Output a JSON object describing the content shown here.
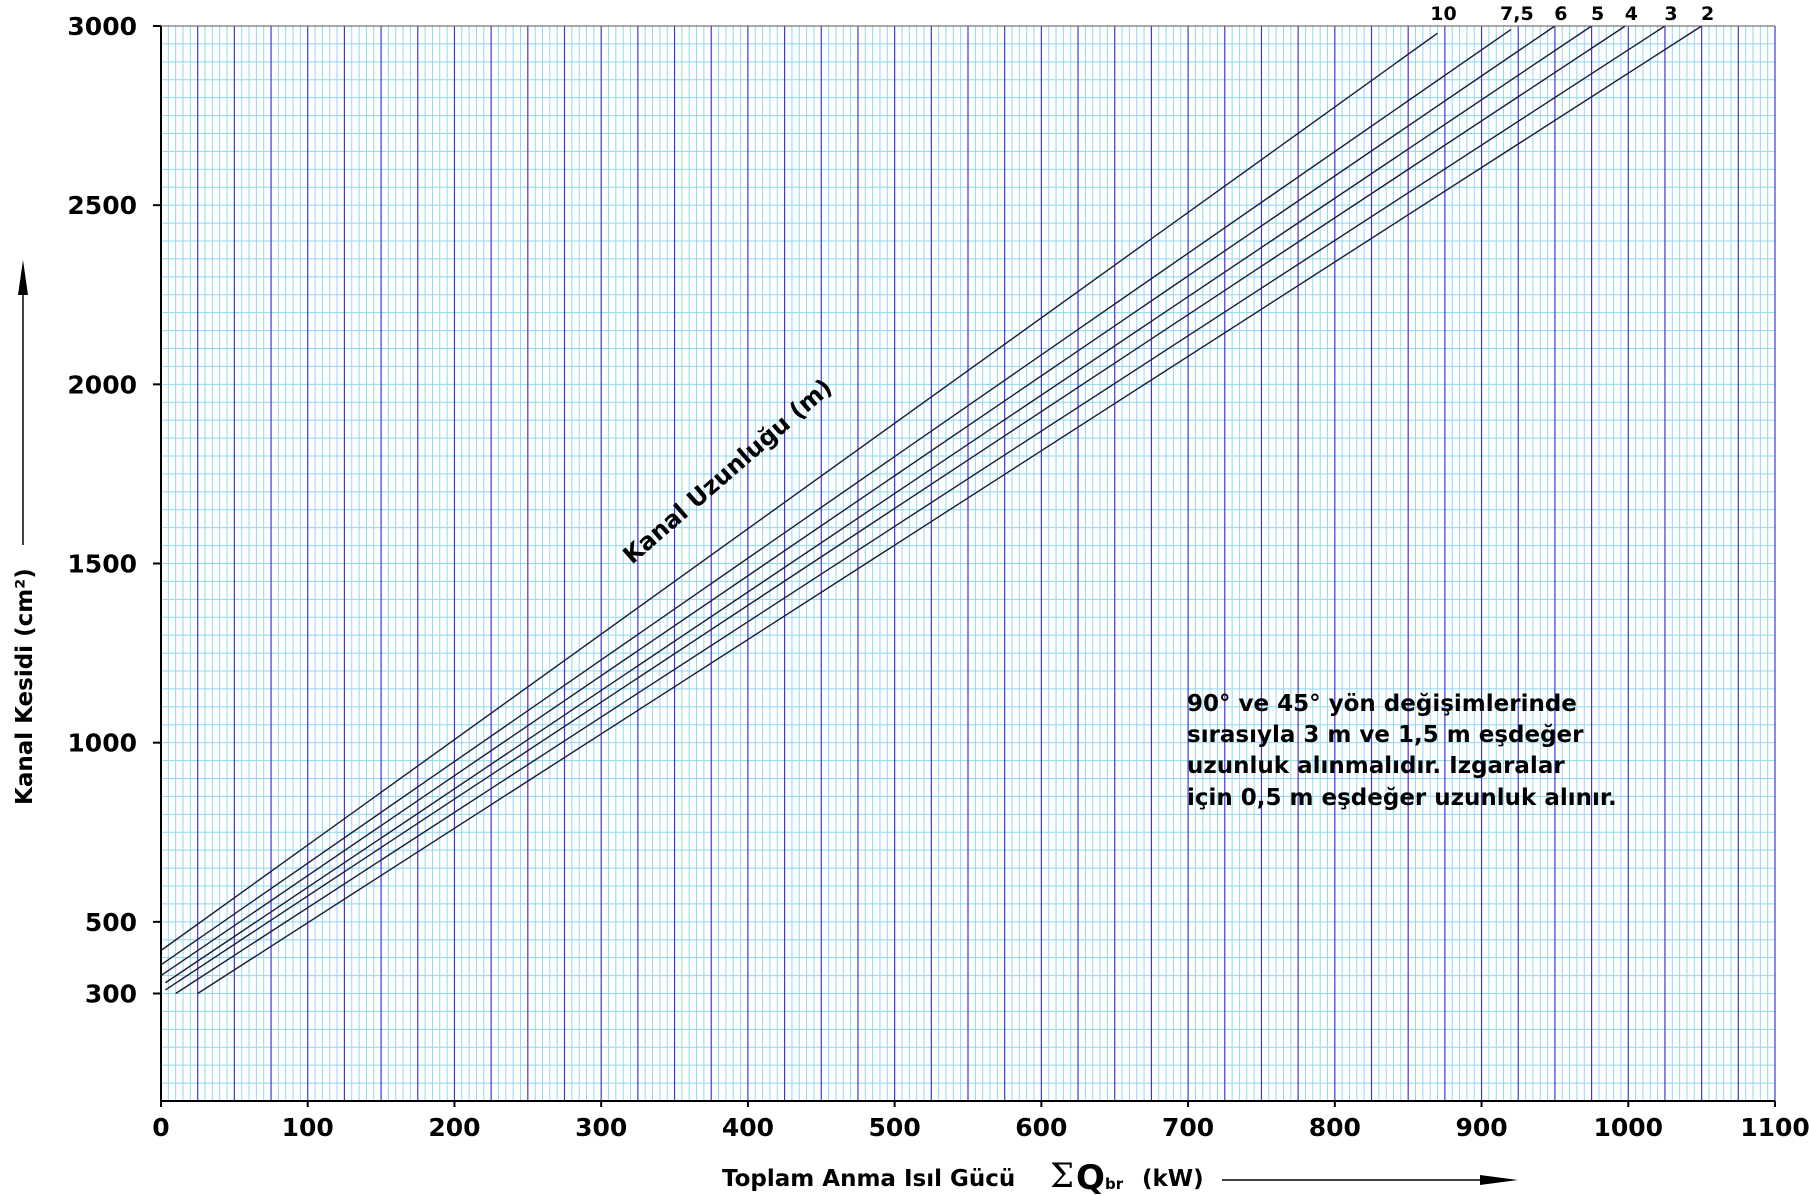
{
  "colors": {
    "minor_grid": "#8fd8ee",
    "major_grid": "#3a3ad4",
    "series_line": "#1a1a3a",
    "axis": "#000000"
  },
  "chart_data": {
    "type": "line",
    "title": "",
    "xlabel": "Toplam Anma Isıl Gücü",
    "xlabel_symbol": "Σ",
    "xlabel_q": "Q",
    "xlabel_sub": "br",
    "xlabel_unit": "(kW)",
    "ylabel": "Kanal Kesidi  (cm²)",
    "xlim": [
      0,
      1100
    ],
    "ylim": [
      0,
      3000
    ],
    "x_ticks": [
      "0",
      "100",
      "200",
      "300",
      "400",
      "500",
      "600",
      "700",
      "800",
      "900",
      "1000",
      "1100"
    ],
    "y_ticks": [
      {
        "value": 300,
        "label": "300"
      },
      {
        "value": 500,
        "label": "500"
      },
      {
        "value": 1000,
        "label": "1000"
      },
      {
        "value": 1500,
        "label": "1500"
      },
      {
        "value": 2000,
        "label": "2000"
      },
      {
        "value": 2500,
        "label": "2500"
      },
      {
        "value": 3000,
        "label": "3000"
      }
    ],
    "grid": true,
    "series_title": "Kanal Uzunluğu (m)",
    "series": [
      {
        "name": "10",
        "x": [
          0,
          870
        ],
        "y": [
          420,
          2980
        ]
      },
      {
        "name": "7,5",
        "x": [
          0,
          920
        ],
        "y": [
          380,
          2990
        ]
      },
      {
        "name": "6",
        "x": [
          0,
          950
        ],
        "y": [
          350,
          3000
        ]
      },
      {
        "name": "5",
        "x": [
          3,
          975
        ],
        "y": [
          330,
          3000
        ]
      },
      {
        "name": "4",
        "x": [
          3,
          998
        ],
        "y": [
          310,
          3000
        ]
      },
      {
        "name": "3",
        "x": [
          10,
          1025
        ],
        "y": [
          300,
          3000
        ]
      },
      {
        "name": "2",
        "x": [
          25,
          1050
        ],
        "y": [
          300,
          3000
        ]
      }
    ],
    "annotation": [
      "90° ve 45° yön değişimlerinde",
      "sırasıyla 3 m ve 1,5 m eşdeğer",
      "uzunluk alınmalıdır. Izgaralar",
      "için 0,5 m eşdeğer uzunluk alınır."
    ]
  }
}
